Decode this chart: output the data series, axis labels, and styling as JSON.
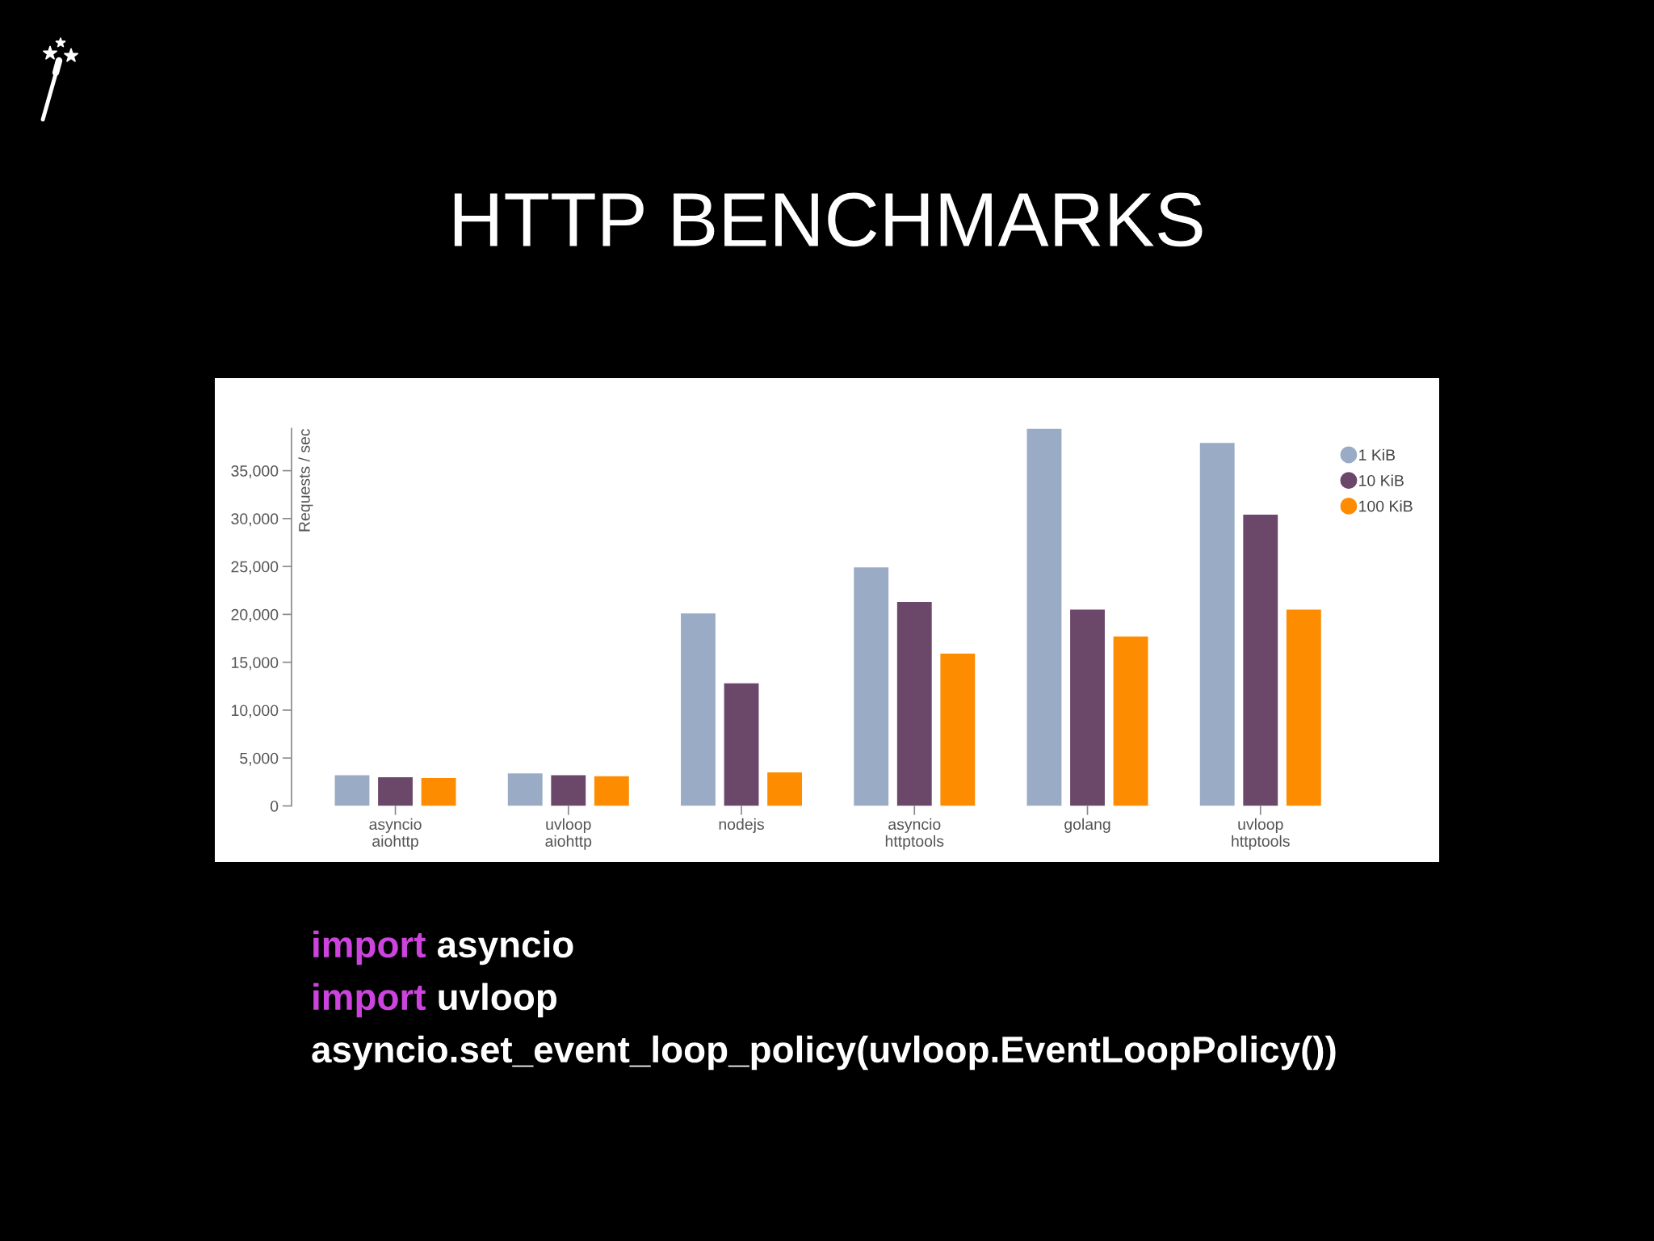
{
  "chart_data": {
    "type": "bar",
    "title": "HTTP BENCHMARKS",
    "ylabel": "Requests / sec",
    "categories": [
      "asyncio\naiohttp",
      "uvloop\naiohttp",
      "nodejs",
      "asyncio\nhttptools",
      "golang",
      "uvloop\nhttptools"
    ],
    "series": [
      {
        "name": "1 KiB",
        "color": "#9aabc5",
        "values": [
          3200,
          3400,
          20100,
          24900,
          39400,
          37900
        ]
      },
      {
        "name": "10 KiB",
        "color": "#6b4769",
        "values": [
          3000,
          3200,
          12800,
          21300,
          20500,
          30400
        ]
      },
      {
        "name": "100 KiB",
        "color": "#fd8c00",
        "values": [
          2900,
          3100,
          3500,
          15900,
          17700,
          20500
        ]
      }
    ],
    "ylim": [
      0,
      39400
    ],
    "yticks": [
      0,
      {
        "value": 5000,
        "label": "5,000"
      },
      {
        "value": 10000,
        "label": "10,000"
      },
      {
        "value": 15000,
        "label": "15,000"
      },
      {
        "value": 20000,
        "label": "20,000"
      },
      {
        "value": 25000,
        "label": "25,000"
      },
      {
        "value": 30000,
        "label": "30,000"
      },
      {
        "value": 35000,
        "label": "35,000"
      }
    ],
    "legend": "top right",
    "annotations": [
      "import asyncio",
      "import uvloop",
      "asyncio.set_event_loop_policy(uvloop.EventLoopPolicy())"
    ]
  }
}
